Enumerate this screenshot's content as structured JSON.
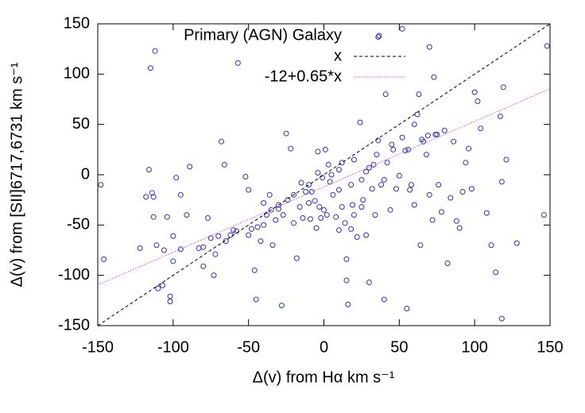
{
  "chart_data": {
    "type": "scatter",
    "xlabel": "Δ(v) from Hα km s⁻¹",
    "ylabel": "Δ(v) from [SII]6717,6731 km s⁻¹",
    "xlim": [
      -150,
      150
    ],
    "ylim": [
      -150,
      150
    ],
    "xticks": [
      -150,
      -100,
      -50,
      0,
      50,
      100,
      150
    ],
    "yticks": [
      -150,
      -100,
      -50,
      0,
      50,
      100,
      150
    ],
    "legend": "top",
    "series": [
      {
        "name": "Primary (AGN) Galaxy",
        "color": "#3333aa",
        "style": "circle",
        "x": [
          -148,
          -146,
          -112,
          -115,
          -57,
          36,
          52,
          70,
          148,
          -122,
          -118,
          -116,
          -114,
          -113,
          -113,
          -111,
          -110,
          -107,
          -106,
          -104,
          -102,
          -102,
          -100,
          -98,
          -95,
          -91,
          -89,
          -83,
          -80,
          -77,
          -75,
          -73,
          -72,
          -70,
          -68,
          -66,
          -65,
          -62,
          -58,
          -52,
          -50,
          -48,
          -46,
          -45,
          -44,
          -42,
          -40,
          -38,
          -36,
          -34,
          -32,
          -30,
          -28,
          -27,
          -25,
          -24,
          -22,
          -20,
          -18,
          -16,
          -14,
          -12,
          -10,
          -8,
          -6,
          -4,
          -3,
          -2,
          -1,
          1,
          2,
          4,
          6,
          8,
          10,
          12,
          14,
          15,
          15,
          16,
          18,
          19,
          20,
          22,
          24,
          25,
          26,
          28,
          30,
          30,
          32,
          34,
          36,
          38,
          40,
          41,
          42,
          44,
          46,
          48,
          50,
          52,
          54,
          55,
          57,
          58,
          60,
          62,
          63,
          64,
          66,
          68,
          69,
          70,
          72,
          73,
          74,
          76,
          78,
          80,
          82,
          84,
          86,
          88,
          90,
          92,
          94,
          96,
          98,
          100,
          102,
          104,
          108,
          111,
          114,
          117,
          118,
          118,
          119,
          121,
          128,
          146,
          -35,
          -20,
          -10,
          5,
          10,
          20,
          28,
          35,
          45,
          56,
          65,
          75,
          40,
          -60,
          -50,
          -40,
          -30,
          -15,
          0,
          12,
          25,
          -5,
          10,
          -80,
          -100,
          -95,
          60,
          3,
          -9,
          18,
          33,
          -4
        ],
        "values": [
          -10,
          -84,
          123,
          106,
          111,
          137,
          145,
          127,
          128,
          -73,
          -22,
          5,
          -18,
          -22,
          -42,
          -70,
          -113,
          -110,
          -75,
          -42,
          -121,
          -126,
          -61,
          -3,
          -20,
          -40,
          8,
          -73,
          -72,
          -43,
          -63,
          -100,
          -79,
          -61,
          33,
          10,
          -66,
          -60,
          -56,
          -2,
          -15,
          -54,
          -95,
          -124,
          -52,
          -66,
          -28,
          -40,
          -20,
          -70,
          -45,
          -34,
          -130,
          -40,
          41,
          -25,
          26,
          -48,
          -83,
          -32,
          -43,
          -17,
          -28,
          -17,
          -26,
          2,
          -32,
          -43,
          -3,
          25,
          -40,
          -7,
          -20,
          -42,
          -15,
          12,
          -48,
          -84,
          -105,
          -129,
          -10,
          -30,
          -40,
          -62,
          52,
          -5,
          -25,
          -60,
          7,
          -107,
          -14,
          -40,
          34,
          -10,
          -124,
          80,
          12,
          -35,
          25,
          -14,
          -1,
          37,
          24,
          -133,
          -15,
          -10,
          -30,
          60,
          80,
          -70,
          33,
          20,
          39,
          -20,
          -45,
          97,
          40,
          -10,
          -37,
          44,
          -88,
          -23,
          33,
          -46,
          -53,
          -17,
          12,
          26,
          -14,
          82,
          73,
          46,
          -38,
          -70,
          -97,
          58,
          -7,
          -143,
          87,
          15,
          -68,
          -40,
          -35,
          -20,
          -10,
          0,
          5,
          15,
          3,
          20,
          30,
          25,
          35,
          40,
          -5,
          -55,
          -60,
          -50,
          -30,
          -8,
          -35,
          -32,
          -32,
          -53,
          -55,
          -91,
          -86,
          -74,
          50,
          10,
          -44,
          -54,
          10,
          23
        ]
      },
      {
        "name": "x",
        "color": "#000000",
        "style": "dashed",
        "x": [
          -150,
          150
        ],
        "values": [
          -150,
          150
        ]
      },
      {
        "name": "-12+0.65*x",
        "color": "#dd22dd",
        "style": "dotted",
        "x": [
          -150,
          150
        ],
        "values": [
          -109.5,
          85.5
        ]
      }
    ]
  }
}
